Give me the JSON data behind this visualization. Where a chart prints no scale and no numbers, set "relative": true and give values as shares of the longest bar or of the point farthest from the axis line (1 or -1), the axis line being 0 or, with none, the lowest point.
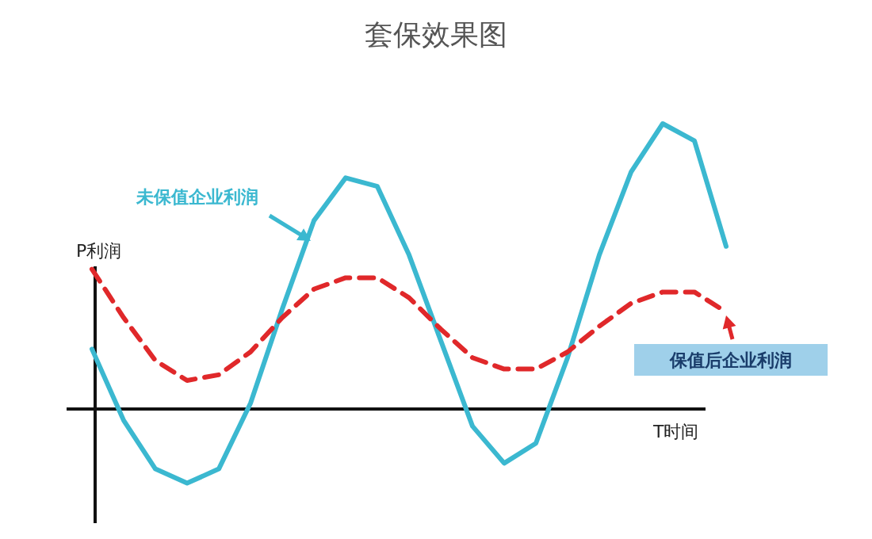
{
  "chart_data": {
    "type": "line",
    "title": "套保效果图",
    "xlabel": "T时间",
    "ylabel": "P利润",
    "relative": true,
    "marker": "none",
    "categories": [
      null,
      null,
      null,
      null,
      null,
      null,
      null,
      null,
      null,
      null,
      null,
      null,
      null,
      null,
      null,
      null,
      null,
      null,
      null,
      null,
      null
    ],
    "series": [
      {
        "name": "未保值企业利润",
        "color": "#3bb8d0",
        "line_style": "solid",
        "values": [
          0.21,
          -0.04,
          -0.21,
          -0.26,
          -0.21,
          0.02,
          0.35,
          0.66,
          0.81,
          0.78,
          0.54,
          0.24,
          -0.06,
          -0.19,
          -0.12,
          0.18,
          0.54,
          0.83,
          1.0,
          0.94,
          0.57
        ]
      },
      {
        "name": "保值后企业利润",
        "color": "#e0282a",
        "line_style": "dashed",
        "values": [
          0.49,
          0.32,
          0.17,
          0.1,
          0.12,
          0.2,
          0.32,
          0.42,
          0.46,
          0.46,
          0.39,
          0.28,
          0.18,
          0.14,
          0.14,
          0.2,
          0.29,
          0.37,
          0.41,
          0.41,
          0.34
        ]
      }
    ]
  }
}
